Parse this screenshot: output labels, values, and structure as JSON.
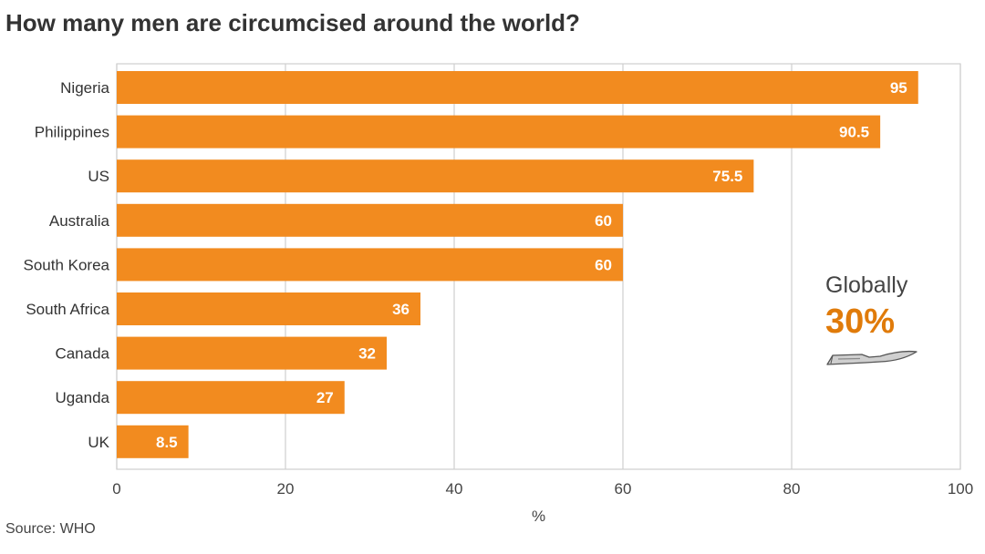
{
  "title": "How many men are circumcised around the world?",
  "source": "Source: WHO",
  "annotation": {
    "label": "Globally",
    "value": "30%",
    "icon": "scalpel-icon"
  },
  "colors": {
    "bar": "#f28b1f",
    "bar_label": "#ffffff",
    "grid": "#cfcfcf",
    "text": "#333333",
    "accent": "#e07b0a"
  },
  "chart_data": {
    "type": "bar",
    "orientation": "horizontal",
    "categories": [
      "Nigeria",
      "Philippines",
      "US",
      "Australia",
      "South Korea",
      "South Africa",
      "Canada",
      "Uganda",
      "UK"
    ],
    "values": [
      95,
      90.5,
      75.5,
      60,
      60,
      36,
      32,
      27,
      8.5
    ],
    "value_labels": [
      "95",
      "90.5",
      "75.5",
      "60",
      "60",
      "36",
      "32",
      "27",
      "8.5"
    ],
    "title": "How many men are circumcised around the world?",
    "xlabel": "%",
    "ylabel": "",
    "xlim": [
      0,
      100
    ],
    "xticks": [
      "0",
      "20",
      "40",
      "60",
      "80",
      "100"
    ],
    "grid": true,
    "legend": "none"
  }
}
